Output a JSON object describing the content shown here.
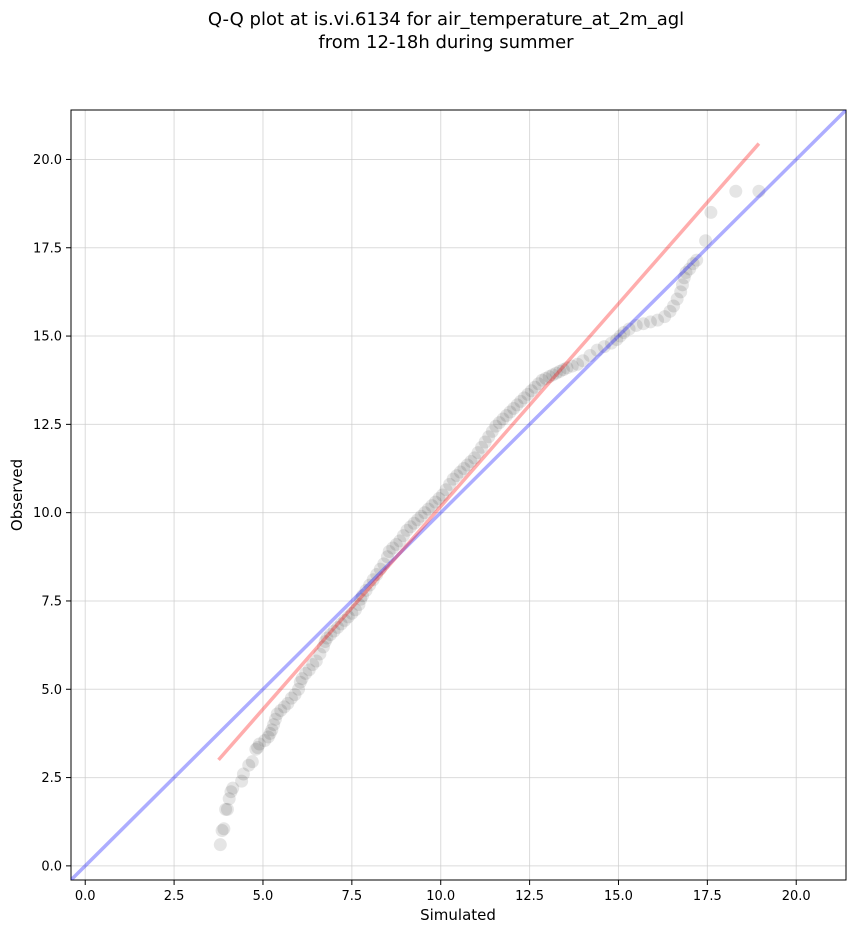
{
  "chart_data": {
    "type": "scatter",
    "title_lines": [
      "Q-Q plot at is.vi.6134 for air_temperature_at_2m_agl",
      "from 12-18h during summer"
    ],
    "xlabel": "Simulated",
    "ylabel": "Observed",
    "xlim": [
      -0.4,
      21.4
    ],
    "ylim": [
      -0.4,
      21.4
    ],
    "x_ticks": [
      0.0,
      2.5,
      5.0,
      7.5,
      10.0,
      12.5,
      15.0,
      17.5,
      20.0
    ],
    "y_ticks": [
      0.0,
      2.5,
      5.0,
      7.5,
      10.0,
      12.5,
      15.0,
      17.5,
      20.0
    ],
    "x_tick_labels": [
      "0.0",
      "2.5",
      "5.0",
      "7.5",
      "10.0",
      "12.5",
      "15.0",
      "17.5",
      "20.0"
    ],
    "y_tick_labels": [
      "0.0",
      "2.5",
      "5.0",
      "7.5",
      "10.0",
      "12.5",
      "15.0",
      "17.5",
      "20.0"
    ],
    "grid": true,
    "colors": {
      "points": "#000000",
      "identity_line": "#0000ff",
      "fit_line": "#ff0000",
      "grid": "#cccccc"
    },
    "series": [
      {
        "type": "scatter",
        "points": [
          [
            3.8,
            0.6
          ],
          [
            3.85,
            1.0
          ],
          [
            3.9,
            1.05
          ],
          [
            3.95,
            1.6
          ],
          [
            4.0,
            1.6
          ],
          [
            4.05,
            1.9
          ],
          [
            4.1,
            2.1
          ],
          [
            4.15,
            2.2
          ],
          [
            4.4,
            2.4
          ],
          [
            4.45,
            2.6
          ],
          [
            4.6,
            2.85
          ],
          [
            4.7,
            2.95
          ],
          [
            4.8,
            3.3
          ],
          [
            4.85,
            3.35
          ],
          [
            4.9,
            3.45
          ],
          [
            5.05,
            3.55
          ],
          [
            5.15,
            3.65
          ],
          [
            5.2,
            3.75
          ],
          [
            5.25,
            3.85
          ],
          [
            5.3,
            4.0
          ],
          [
            5.35,
            4.15
          ],
          [
            5.4,
            4.3
          ],
          [
            5.5,
            4.4
          ],
          [
            5.6,
            4.5
          ],
          [
            5.7,
            4.6
          ],
          [
            5.8,
            4.75
          ],
          [
            5.9,
            4.85
          ],
          [
            6.0,
            5.0
          ],
          [
            6.05,
            5.2
          ],
          [
            6.1,
            5.3
          ],
          [
            6.2,
            5.45
          ],
          [
            6.3,
            5.55
          ],
          [
            6.4,
            5.7
          ],
          [
            6.5,
            5.8
          ],
          [
            6.6,
            6.0
          ],
          [
            6.7,
            6.2
          ],
          [
            6.75,
            6.35
          ],
          [
            6.8,
            6.45
          ],
          [
            6.9,
            6.55
          ],
          [
            7.0,
            6.65
          ],
          [
            7.1,
            6.75
          ],
          [
            7.2,
            6.85
          ],
          [
            7.3,
            6.95
          ],
          [
            7.4,
            7.05
          ],
          [
            7.5,
            7.15
          ],
          [
            7.6,
            7.25
          ],
          [
            7.7,
            7.4
          ],
          [
            7.75,
            7.55
          ],
          [
            7.8,
            7.65
          ],
          [
            7.9,
            7.8
          ],
          [
            8.0,
            7.95
          ],
          [
            8.1,
            8.1
          ],
          [
            8.2,
            8.25
          ],
          [
            8.3,
            8.4
          ],
          [
            8.4,
            8.55
          ],
          [
            8.5,
            8.75
          ],
          [
            8.55,
            8.9
          ],
          [
            8.65,
            9.0
          ],
          [
            8.75,
            9.1
          ],
          [
            8.85,
            9.2
          ],
          [
            8.95,
            9.35
          ],
          [
            9.05,
            9.5
          ],
          [
            9.15,
            9.6
          ],
          [
            9.25,
            9.7
          ],
          [
            9.35,
            9.8
          ],
          [
            9.45,
            9.9
          ],
          [
            9.55,
            10.0
          ],
          [
            9.65,
            10.1
          ],
          [
            9.75,
            10.2
          ],
          [
            9.85,
            10.3
          ],
          [
            9.95,
            10.4
          ],
          [
            10.05,
            10.5
          ],
          [
            10.15,
            10.65
          ],
          [
            10.25,
            10.8
          ],
          [
            10.35,
            10.95
          ],
          [
            10.45,
            11.05
          ],
          [
            10.55,
            11.15
          ],
          [
            10.65,
            11.25
          ],
          [
            10.75,
            11.35
          ],
          [
            10.85,
            11.45
          ],
          [
            10.95,
            11.55
          ],
          [
            11.05,
            11.7
          ],
          [
            11.15,
            11.85
          ],
          [
            11.25,
            12.0
          ],
          [
            11.35,
            12.15
          ],
          [
            11.45,
            12.3
          ],
          [
            11.55,
            12.45
          ],
          [
            11.65,
            12.55
          ],
          [
            11.75,
            12.65
          ],
          [
            11.85,
            12.75
          ],
          [
            11.95,
            12.85
          ],
          [
            12.05,
            12.95
          ],
          [
            12.15,
            13.05
          ],
          [
            12.25,
            13.15
          ],
          [
            12.35,
            13.25
          ],
          [
            12.45,
            13.35
          ],
          [
            12.55,
            13.45
          ],
          [
            12.65,
            13.55
          ],
          [
            12.75,
            13.65
          ],
          [
            12.85,
            13.75
          ],
          [
            12.95,
            13.8
          ],
          [
            13.05,
            13.85
          ],
          [
            13.15,
            13.9
          ],
          [
            13.25,
            13.95
          ],
          [
            13.35,
            14.0
          ],
          [
            13.45,
            14.05
          ],
          [
            13.55,
            14.1
          ],
          [
            13.7,
            14.15
          ],
          [
            13.85,
            14.2
          ],
          [
            14.0,
            14.3
          ],
          [
            14.2,
            14.45
          ],
          [
            14.4,
            14.6
          ],
          [
            14.6,
            14.7
          ],
          [
            14.8,
            14.8
          ],
          [
            14.95,
            14.9
          ],
          [
            15.05,
            15.0
          ],
          [
            15.15,
            15.1
          ],
          [
            15.3,
            15.2
          ],
          [
            15.5,
            15.3
          ],
          [
            15.7,
            15.35
          ],
          [
            15.9,
            15.4
          ],
          [
            16.1,
            15.45
          ],
          [
            16.3,
            15.55
          ],
          [
            16.45,
            15.7
          ],
          [
            16.55,
            15.85
          ],
          [
            16.65,
            16.05
          ],
          [
            16.75,
            16.25
          ],
          [
            16.8,
            16.45
          ],
          [
            16.85,
            16.65
          ],
          [
            16.9,
            16.8
          ],
          [
            17.0,
            16.9
          ],
          [
            17.1,
            17.05
          ],
          [
            17.2,
            17.15
          ],
          [
            17.45,
            17.7
          ],
          [
            17.6,
            18.5
          ],
          [
            18.3,
            19.1
          ],
          [
            18.95,
            19.1
          ]
        ]
      },
      {
        "type": "line",
        "name": "",
        "color": "#0000ff",
        "x": [
          -0.4,
          21.4
        ],
        "y": [
          -0.4,
          21.4
        ]
      },
      {
        "type": "line",
        "name": "",
        "color": "#ff0000",
        "x": [
          3.75,
          18.95
        ],
        "y": [
          3.0,
          20.45
        ]
      }
    ]
  }
}
